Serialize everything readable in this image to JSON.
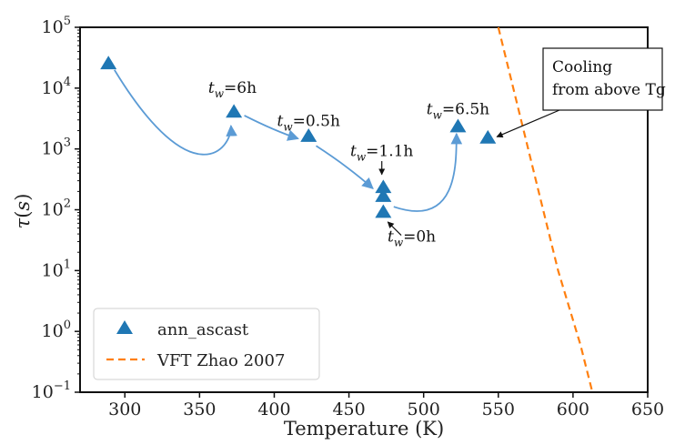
{
  "chart_data": {
    "type": "scatter",
    "xlabel": "Temperature (K)",
    "ylabel": "τ(s)",
    "xlim": [
      270,
      650
    ],
    "ylim_log10": [
      -1,
      5
    ],
    "y_scale": "log",
    "x_ticks": [
      300,
      350,
      400,
      450,
      500,
      550,
      600,
      650
    ],
    "y_ticks": [
      {
        "exp": -1,
        "base": "10",
        "sup": "−1"
      },
      {
        "exp": 0,
        "base": "10",
        "sup": "0"
      },
      {
        "exp": 1,
        "base": "10",
        "sup": "1"
      },
      {
        "exp": 2,
        "base": "10",
        "sup": "2"
      },
      {
        "exp": 3,
        "base": "10",
        "sup": "3"
      },
      {
        "exp": 4,
        "base": "10",
        "sup": "4"
      },
      {
        "exp": 5,
        "base": "10",
        "sup": "5"
      }
    ],
    "series": [
      {
        "name": "ann_ascast",
        "marker": "triangle",
        "color": "#1f77b4",
        "points": [
          {
            "x": 289,
            "y": 25000
          },
          {
            "x": 373,
            "y": 4000
          },
          {
            "x": 423,
            "y": 1600
          },
          {
            "x": 473,
            "y": 230
          },
          {
            "x": 473,
            "y": 165
          },
          {
            "x": 473,
            "y": 90
          },
          {
            "x": 523,
            "y": 2300
          },
          {
            "x": 543,
            "y": 1500
          }
        ]
      },
      {
        "name": "VFT Zhao 2007",
        "style": "dashed",
        "color": "#ff7f0e",
        "points": [
          {
            "x": 550,
            "y": 100000
          },
          {
            "x": 560,
            "y": 10000
          },
          {
            "x": 575,
            "y": 316
          },
          {
            "x": 590,
            "y": 10
          },
          {
            "x": 605,
            "y": 0.6
          },
          {
            "x": 613,
            "y": 0.1
          }
        ]
      }
    ],
    "arrow_color": "#5b9bd5",
    "annotations": [
      {
        "base": "t",
        "sub": "w",
        "value": "=6h",
        "x": 372,
        "y_log": 3.92
      },
      {
        "base": "t",
        "sub": "w",
        "value": "=0.5h",
        "x": 423,
        "y_log": 3.38
      },
      {
        "base": "t",
        "sub": "w",
        "value": "=1.1h",
        "x": 472,
        "y_log": 2.88
      },
      {
        "base": "t",
        "sub": "w",
        "value": "=0h",
        "x": 492,
        "y_log": 1.48
      },
      {
        "base": "t",
        "sub": "w",
        "value": "=6.5h",
        "x": 523,
        "y_log": 3.57
      }
    ],
    "callout": {
      "lines": [
        "Cooling",
        "from above Tg"
      ],
      "target_x": 549,
      "target_y_log": 3.2
    },
    "legend_position": "lower-left"
  }
}
